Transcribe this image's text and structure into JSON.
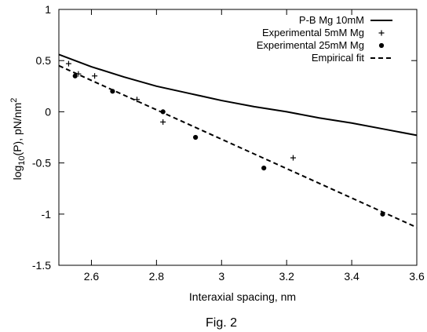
{
  "chart_data": {
    "type": "scatter",
    "xlabel": "Interaxial spacing, nm",
    "ylabel_main": "log",
    "ylabel_sub": "10",
    "ylabel_rest": "(P), pN/nm",
    "ylabel_sup": "2",
    "xlim": [
      2.5,
      3.6
    ],
    "ylim": [
      -1.5,
      1
    ],
    "x_ticks": [
      "2.6",
      "2.8",
      "3",
      "3.2",
      "3.4",
      "3.6"
    ],
    "y_ticks": [
      "1",
      "0.5",
      "0",
      "-0.5",
      "-1",
      "-1.5"
    ],
    "legend_position": "top-right",
    "series": [
      {
        "name": "P-B Mg 10mM",
        "kind": "line",
        "style": "solid",
        "x": [
          2.5,
          2.6,
          2.7,
          2.8,
          2.9,
          3.0,
          3.1,
          3.2,
          3.3,
          3.4,
          3.5,
          3.6
        ],
        "y": [
          0.56,
          0.44,
          0.34,
          0.25,
          0.18,
          0.11,
          0.05,
          0.0,
          -0.06,
          -0.11,
          -0.17,
          -0.23
        ]
      },
      {
        "name": "Experimental 5mM Mg",
        "kind": "points",
        "marker": "plus",
        "x": [
          2.53,
          2.56,
          2.61,
          2.74,
          2.82,
          3.22
        ],
        "y": [
          0.47,
          0.37,
          0.35,
          0.12,
          -0.1,
          -0.45
        ]
      },
      {
        "name": "Experimental 25mM Mg",
        "kind": "points",
        "marker": "circle",
        "x": [
          2.55,
          2.665,
          2.82,
          2.92,
          3.13,
          3.495
        ],
        "y": [
          0.35,
          0.2,
          0.0,
          -0.25,
          -0.55,
          -1.0
        ]
      },
      {
        "name": "Empirical fit",
        "kind": "line",
        "style": "dashed",
        "x": [
          2.5,
          3.6
        ],
        "y": [
          0.45,
          -1.13
        ]
      }
    ]
  },
  "caption": "Fig. 2"
}
